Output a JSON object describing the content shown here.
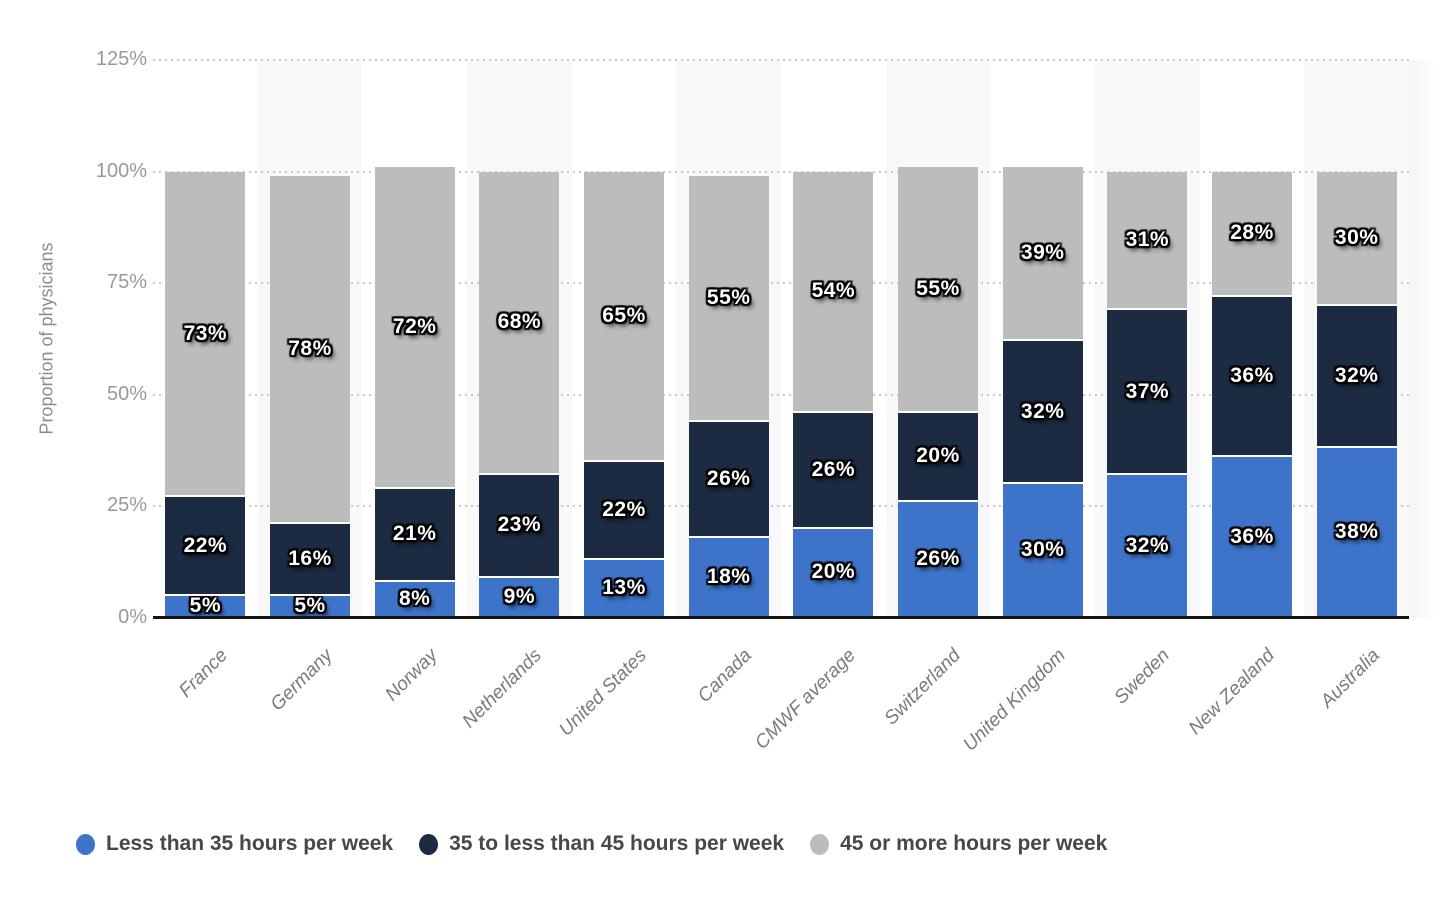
{
  "chart_data": {
    "type": "bar",
    "stacked": true,
    "ylabel": "Proportion of physicians",
    "ylim": [
      0,
      125
    ],
    "yticks": [
      0,
      25,
      50,
      75,
      100,
      125
    ],
    "ytick_suffix": "%",
    "value_suffix": "%",
    "grid": "horizontal-dotted",
    "legend_position": "bottom",
    "categories": [
      "France",
      "Germany",
      "Norway",
      "Netherlands",
      "United States",
      "Canada",
      "CMWF average",
      "Switzerland",
      "United Kingdom",
      "Sweden",
      "New Zealand",
      "Australia"
    ],
    "series": [
      {
        "name": "Less than 35 hours per week",
        "color": "#3d74c9",
        "values": [
          5,
          5,
          8,
          9,
          13,
          18,
          20,
          26,
          30,
          32,
          36,
          38
        ]
      },
      {
        "name": "35 to less than 45 hours per week",
        "color": "#1c2b42",
        "values": [
          22,
          16,
          21,
          23,
          22,
          26,
          26,
          20,
          32,
          37,
          36,
          32
        ]
      },
      {
        "name": "45 or more hours per week",
        "color": "#bcbcbc",
        "values": [
          73,
          78,
          72,
          68,
          65,
          55,
          54,
          55,
          39,
          31,
          28,
          30
        ]
      }
    ],
    "colors": {
      "band": "#f8f8f8",
      "gridline": "#c9c9c9",
      "axis": "#141414",
      "tick_text": "#999999",
      "category_text": "#7a7a7a",
      "legend_text": "#474747"
    }
  }
}
